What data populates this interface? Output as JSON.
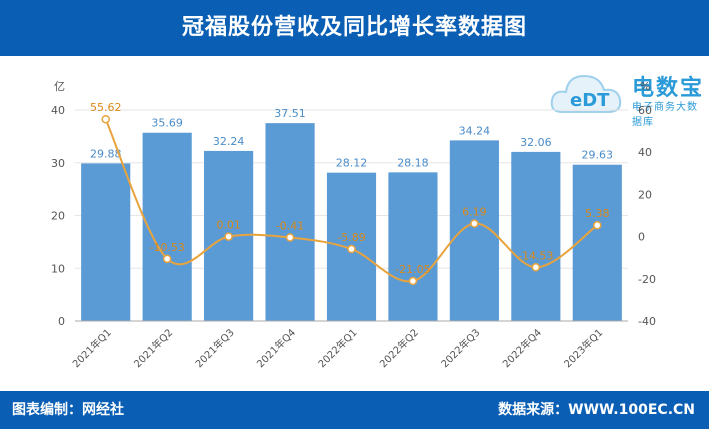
{
  "header": {
    "title": "冠福股份营收及同比增长率数据图"
  },
  "footer": {
    "editor": "图表编制：网经社",
    "source": "数据来源：WWW.100EC.CN"
  },
  "logo": {
    "name": "电数宝",
    "tag": "电子商务大数据库",
    "mark": "eDT"
  },
  "colors": {
    "bar": "#5b9bd5",
    "line": "#e8a33d",
    "header": "#0a5fb4",
    "logo": "#2a9ad8"
  },
  "chart_data": {
    "type": "bar",
    "categories": [
      "2021年Q1",
      "2021年Q2",
      "2021年Q3",
      "2021年Q4",
      "2022年Q1",
      "2022年Q2",
      "2022年Q3",
      "2022年Q4",
      "2023年Q1"
    ],
    "series": [
      {
        "values": [
          29.88,
          35.69,
          32.24,
          37.51,
          28.12,
          28.18,
          34.24,
          32.06,
          29.63
        ],
        "axis": "left",
        "kind": "bar"
      },
      {
        "values": [
          55.62,
          -10.53,
          0.01,
          -0.41,
          -5.89,
          -21.05,
          6.19,
          -14.53,
          5.38
        ],
        "axis": "right",
        "kind": "line"
      }
    ],
    "y_left": {
      "unit": "亿",
      "range": [
        0,
        40
      ],
      "ticks": [
        0,
        10,
        20,
        30,
        40
      ]
    },
    "y_right": {
      "unit": "%",
      "range": [
        -40,
        60
      ],
      "ticks": [
        -40,
        -20,
        0,
        20,
        40,
        60
      ]
    },
    "bar_labels": [
      "29.88",
      "35.69",
      "32.24",
      "37.51",
      "28.12",
      "28.18",
      "34.24",
      "32.06",
      "29.63"
    ],
    "line_labels": [
      "55.62",
      "-10.53",
      "0.01",
      "-0.41",
      "-5.89",
      "-21.05",
      "6.19",
      "-14.53",
      "5.38"
    ],
    "grid": true
  }
}
